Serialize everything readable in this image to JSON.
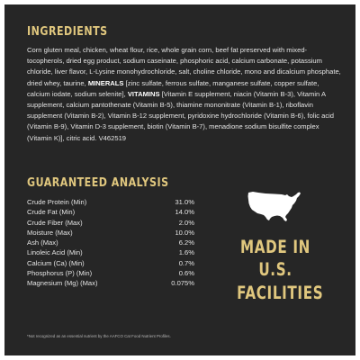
{
  "ingredients": {
    "heading": "INGREDIENTS",
    "text_part1": "Corn gluten meal, chicken, wheat flour, rice, whole grain corn, beef fat preserved with mixed-tocopherols, dried egg product, sodium caseinate, phosphoric acid, calcium carbonate, potassium chloride, liver flavor, L-Lysine monohydrochloride, salt, choline chloride, mono and dicalcium phosphate, dried whey, taurine, ",
    "minerals_label": "MINERALS",
    "text_part2": " [zinc sulfate, ferrous sulfate, manganese sulfate, copper sulfate, calcium iodate, sodium selenite], ",
    "vitamins_label": "VITAMINS",
    "text_part3": " [Vitamin E supplement, niacin (Vitamin B-3), Vitamin A supplement, calcium pantothenate (Vitamin B-5), thiamine mononitrate (Vitamin B-1), riboflavin supplement (Vitamin B-2), Vitamin B-12 supplement, pyridoxine hydrochloride (Vitamin B-6), folic acid (Vitamin B-9), Vitamin D-3 supplement, biotin (Vitamin B-7), menadione sodium bisulfite complex (Vitamin K)], citric acid. V462519"
  },
  "analysis": {
    "heading": "GUARANTEED ANALYSIS",
    "rows": [
      {
        "name": "Crude Protein (Min)",
        "value": "31.0%"
      },
      {
        "name": "Crude Fat (Min)",
        "value": "14.0%"
      },
      {
        "name": "Crude Fiber (Max)",
        "value": "2.0%"
      },
      {
        "name": "Moisture (Max)",
        "value": "10.0%"
      },
      {
        "name": "Ash (Max)",
        "value": "6.2%"
      },
      {
        "name": "Linoleic Acid (Min)",
        "value": "1.6%"
      },
      {
        "name": "Calcium (Ca) (Min)",
        "value": "0.7%"
      },
      {
        "name": "Phosphorus (P) (Min)",
        "value": "0.6%"
      },
      {
        "name": "Magnesium (Mg) (Max)",
        "value": "0.075%"
      }
    ]
  },
  "badge": {
    "line1": "MADE IN",
    "line2": "U.S.",
    "line3": "FACILITIES",
    "icon": "usa-map-icon"
  },
  "footnote": "*Not recognized as an essential nutrient by the AAFCO Cat Food Nutrient Profiles.",
  "colors": {
    "background": "#262626",
    "accent": "#e0c77e",
    "text": "#e3e3e3"
  }
}
